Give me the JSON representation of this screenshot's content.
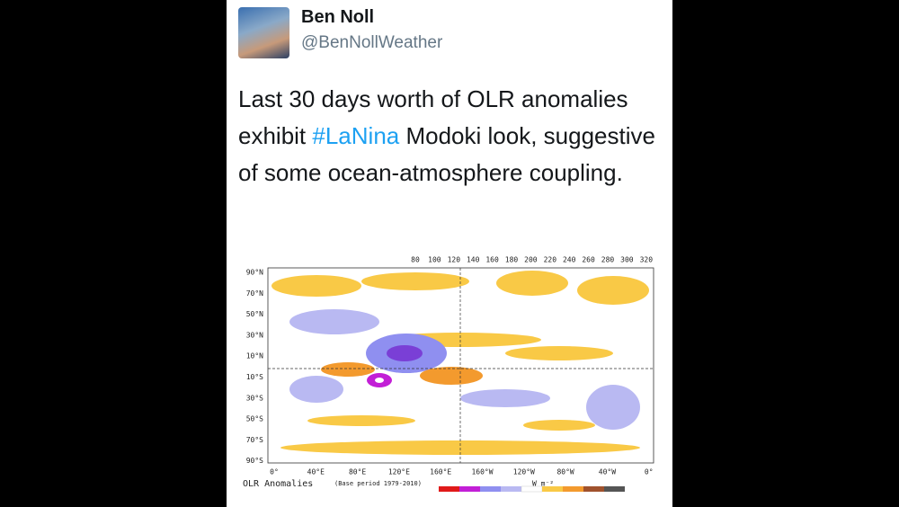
{
  "tweet": {
    "name": "Ben Noll",
    "handle": "@BenNollWeather",
    "text_parts": [
      "Last 30 days worth of OLR anomalies exhibit ",
      "#LaNina",
      " Modoki look, suggestive of some ocean-atmosphere coupling."
    ]
  },
  "map": {
    "top_labels": [
      "80",
      "100",
      "120",
      "140",
      "160",
      "180",
      "200",
      "220",
      "240",
      "260",
      "280",
      "300",
      "320"
    ],
    "lat_labels": [
      "90°N",
      "70°N",
      "50°N",
      "30°N",
      "10°N",
      "10°S",
      "30°S",
      "50°S",
      "70°S",
      "90°S"
    ],
    "lon_labels": [
      "0°",
      "40°E",
      "80°E",
      "120°E",
      "160°E",
      "160°W",
      "120°W",
      "80°W",
      "40°W",
      "0°"
    ],
    "caption": "OLR Anomalies",
    "base_period": "(Base period 1979-2010)",
    "units": "W m⁻²"
  }
}
